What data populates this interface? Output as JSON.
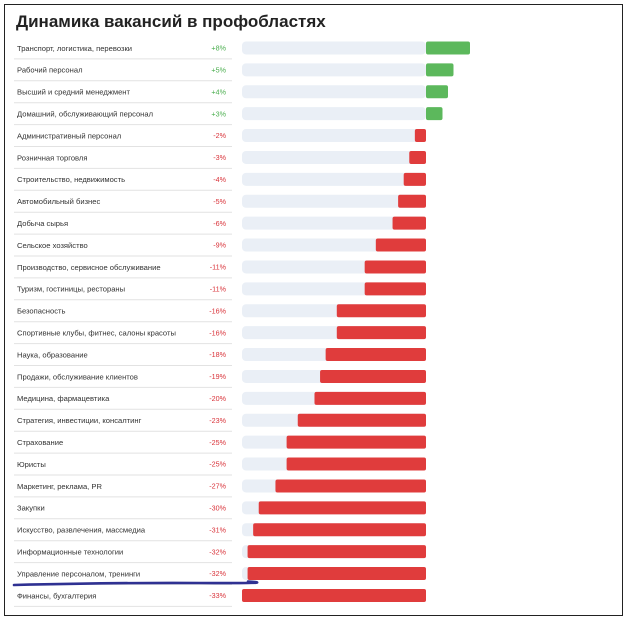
{
  "chart_data": {
    "type": "bar",
    "title": "Динамика вакансий в профобластях",
    "categories": [
      "Транспорт, логистика, перевозки",
      "Рабочий персонал",
      "Высший и средний менеджмент",
      "Домашний, обслуживающий персонал",
      "Административный персонал",
      "Розничная торговля",
      "Строительство, недвижимость",
      "Автомобильный бизнес",
      "Добыча сырья",
      "Сельское хозяйство",
      "Производство, сервисное обслуживание",
      "Туризм, гостиницы, рестораны",
      "Безопасность",
      "Спортивные клубы, фитнес, салоны красоты",
      "Наука, образование",
      "Продажи, обслуживание клиентов",
      "Медицина, фармацевтика",
      "Стратегия, инвестиции, консалтинг",
      "Страхование",
      "Юристы",
      "Маркетинг, реклама, PR",
      "Закупки",
      "Искусство, развлечения, массмедиа",
      "Информационные технологии",
      "Управление персоналом, тренинги",
      "Финансы, бухгалтерия"
    ],
    "values": [
      8,
      5,
      4,
      3,
      -2,
      -3,
      -4,
      -5,
      -6,
      -9,
      -11,
      -11,
      -16,
      -16,
      -18,
      -19,
      -20,
      -23,
      -25,
      -25,
      -27,
      -30,
      -31,
      -32,
      -32,
      -33
    ],
    "value_labels": [
      "+8%",
      "+5%",
      "+4%",
      "+3%",
      "-2%",
      "-3%",
      "-4%",
      "-5%",
      "-6%",
      "-9%",
      "-11%",
      "-11%",
      "-16%",
      "-16%",
      "-18%",
      "-19%",
      "-20%",
      "-23%",
      "-25%",
      "-25%",
      "-27%",
      "-30%",
      "-31%",
      "-32%",
      "-32%",
      "-33%"
    ],
    "xlim": [
      -33,
      8
    ],
    "colors": {
      "positive": "#5cb85c",
      "negative": "#e03c3c",
      "positive_text": "#4caf50",
      "negative_text": "#d9333a",
      "track": "#eaeff6",
      "separator": "#e2e2e2",
      "annotation_underline": "#2f3192"
    },
    "annotation": "underline under 'Управление персоналом, тренинги'",
    "grid": false,
    "legend": "none"
  }
}
